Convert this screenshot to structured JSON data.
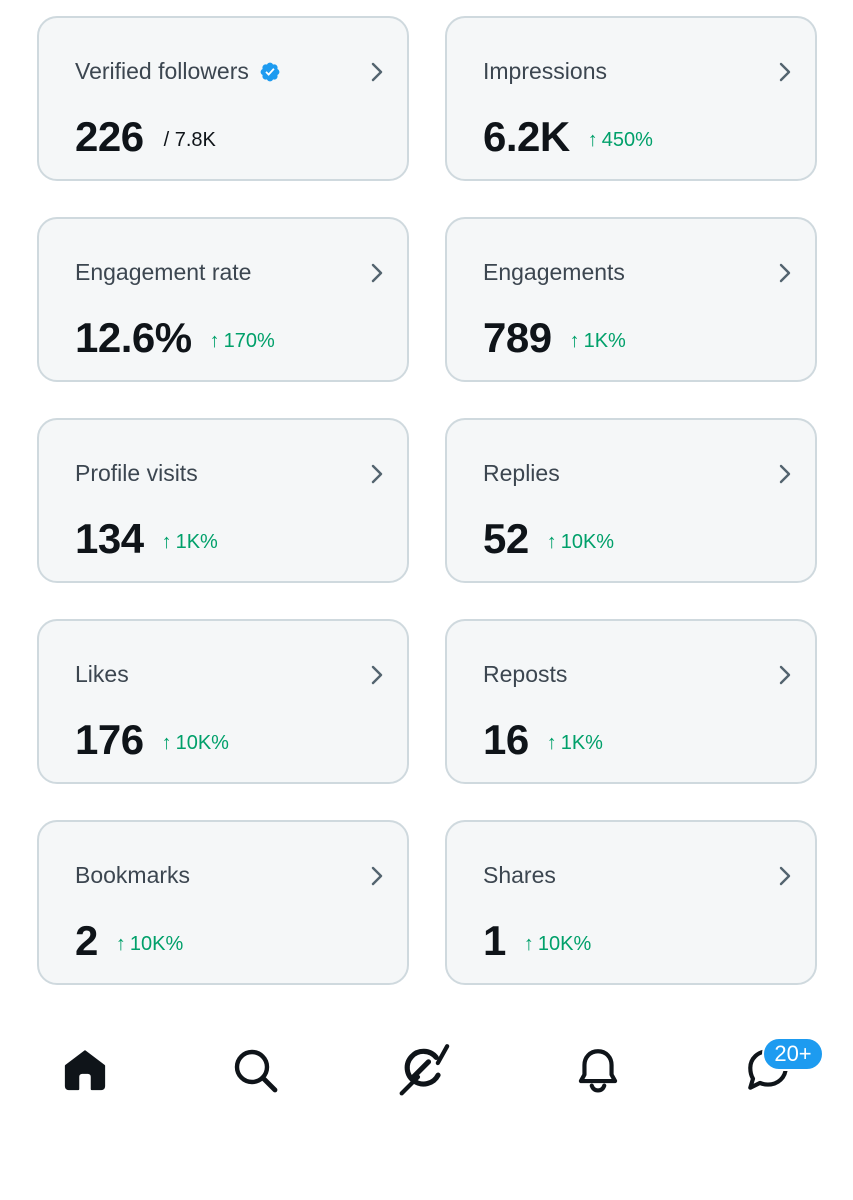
{
  "cards": [
    {
      "title": "Verified followers",
      "value": "226",
      "suffix": "/ 7.8K",
      "delta": "",
      "verified": true
    },
    {
      "title": "Impressions",
      "value": "6.2K",
      "suffix": "",
      "delta": "450%"
    },
    {
      "title": "Engagement rate",
      "value": "12.6%",
      "suffix": "",
      "delta": "170%"
    },
    {
      "title": "Engagements",
      "value": "789",
      "suffix": "",
      "delta": "1K%"
    },
    {
      "title": "Profile visits",
      "value": "134",
      "suffix": "",
      "delta": "1K%"
    },
    {
      "title": "Replies",
      "value": "52",
      "suffix": "",
      "delta": "10K%"
    },
    {
      "title": "Likes",
      "value": "176",
      "suffix": "",
      "delta": "10K%"
    },
    {
      "title": "Reposts",
      "value": "16",
      "suffix": "",
      "delta": "1K%"
    },
    {
      "title": "Bookmarks",
      "value": "2",
      "suffix": "",
      "delta": "10K%"
    },
    {
      "title": "Shares",
      "value": "1",
      "suffix": "",
      "delta": "10K%"
    }
  ],
  "delta_arrow": "↑",
  "colors": {
    "accent": "#1d9bf0",
    "positive": "#00a06a",
    "card_bg": "#f5f7f8",
    "card_border": "#cfd9de"
  },
  "nav": {
    "items": [
      {
        "icon": "home-icon",
        "active": true
      },
      {
        "icon": "search-icon",
        "active": false
      },
      {
        "icon": "grok-icon",
        "active": false
      },
      {
        "icon": "bell-icon",
        "active": false
      },
      {
        "icon": "messages-icon",
        "active": false
      }
    ],
    "messages_badge": "20+"
  }
}
